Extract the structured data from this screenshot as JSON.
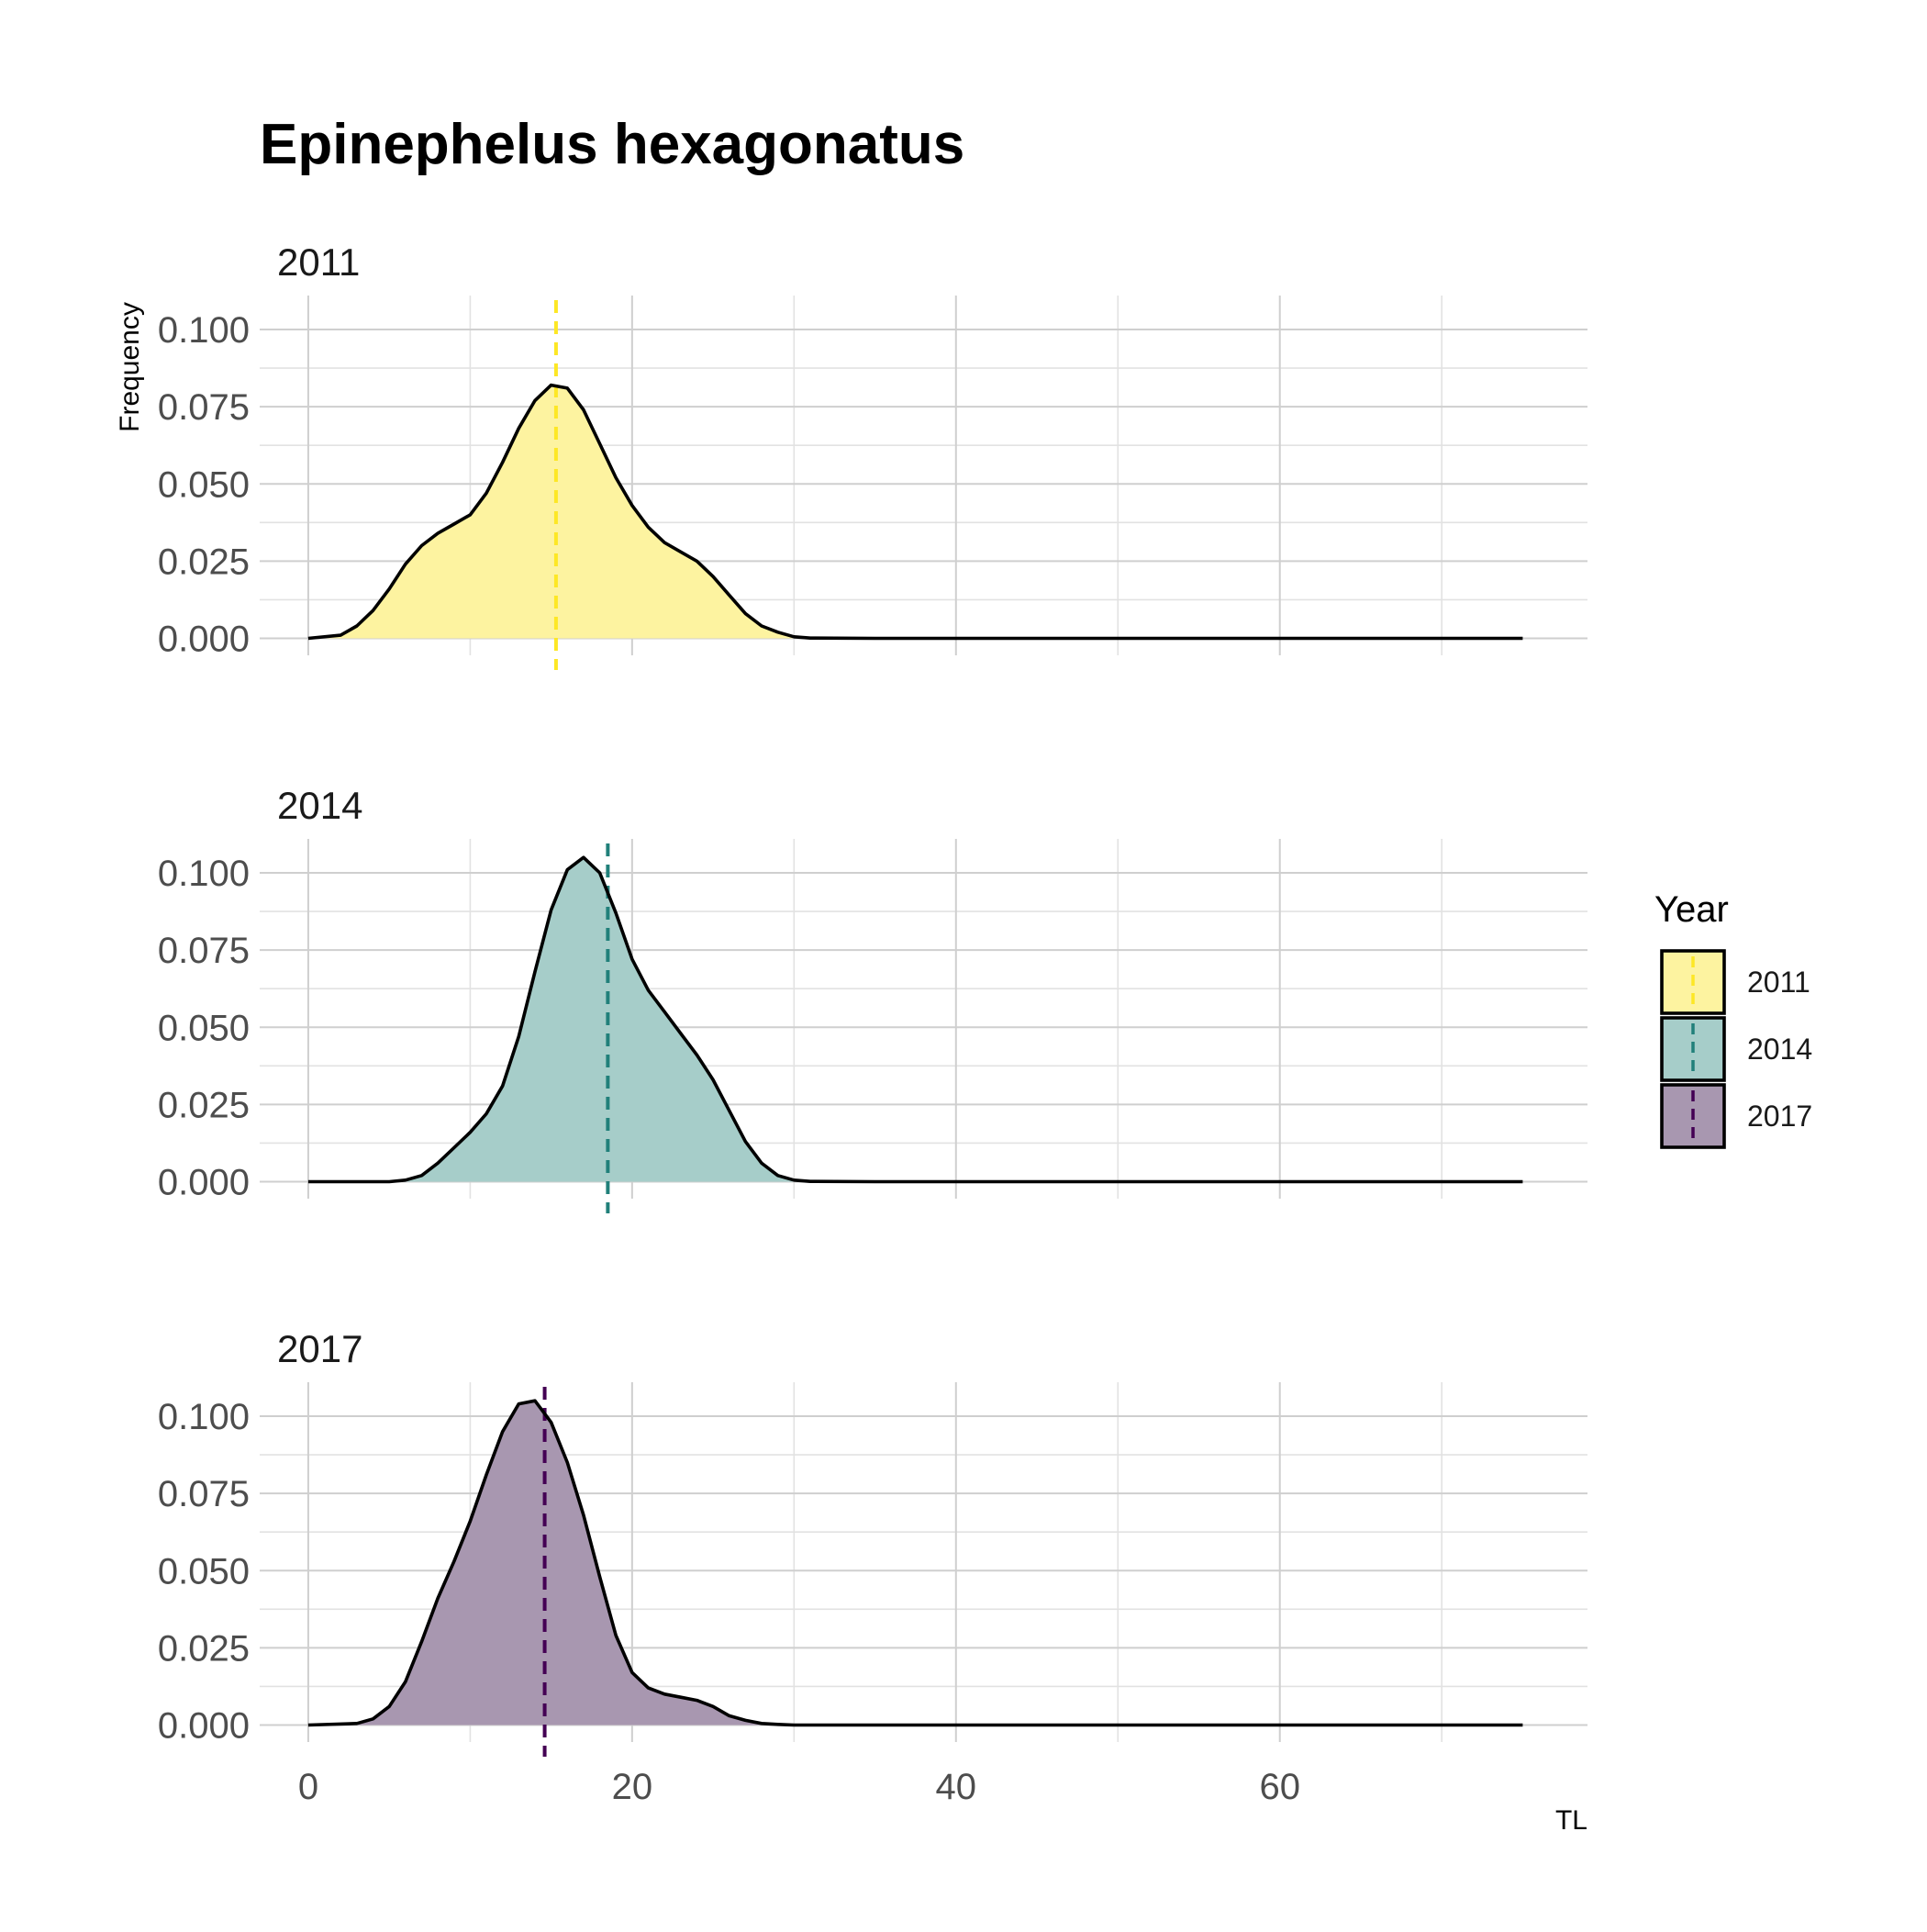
{
  "chart_data": {
    "type": "area",
    "title": "Epinephelus hexagonatus",
    "xlabel": "TL",
    "ylabel": "Frequency",
    "xlim": [
      -3,
      79
    ],
    "ylim": [
      -0.0055,
      0.111
    ],
    "x_ticks": [
      0,
      20,
      40,
      60
    ],
    "x_tick_labels": [
      "0",
      "20",
      "40",
      "60"
    ],
    "y_ticks": [
      0,
      0.025,
      0.05,
      0.075,
      0.1
    ],
    "y_tick_labels": [
      "0.000",
      "0.025",
      "0.050",
      "0.075",
      "0.100"
    ],
    "grid": true,
    "legend": {
      "title": "Year",
      "position": "right",
      "entries": [
        "2011",
        "2014",
        "2017"
      ]
    },
    "series": [
      {
        "name": "2011",
        "color": "#FDE725",
        "fill": "#FDF3A0",
        "mean_line": 15.3,
        "x": [
          0,
          2,
          3,
          4,
          5,
          6,
          7,
          8,
          9,
          10,
          11,
          12,
          13,
          14,
          15,
          16,
          17,
          18,
          19,
          20,
          21,
          22,
          23,
          24,
          25,
          26,
          27,
          28,
          29,
          30,
          31,
          35,
          40,
          50,
          60,
          70,
          75
        ],
        "y": [
          0.0,
          0.001,
          0.004,
          0.009,
          0.016,
          0.024,
          0.03,
          0.034,
          0.037,
          0.04,
          0.047,
          0.057,
          0.068,
          0.077,
          0.082,
          0.081,
          0.074,
          0.063,
          0.052,
          0.043,
          0.036,
          0.031,
          0.028,
          0.025,
          0.02,
          0.014,
          0.008,
          0.004,
          0.002,
          0.0005,
          0.0001,
          0.0,
          0.0,
          0.0,
          0.0,
          0.0,
          0.0
        ]
      },
      {
        "name": "2014",
        "color": "#21807A",
        "fill": "#A6CDC9",
        "mean_line": 18.5,
        "x": [
          0,
          5,
          6,
          7,
          8,
          9,
          10,
          11,
          12,
          13,
          14,
          15,
          16,
          17,
          18,
          19,
          20,
          21,
          22,
          23,
          24,
          25,
          26,
          27,
          28,
          29,
          30,
          31,
          35,
          40,
          50,
          60,
          70,
          75
        ],
        "y": [
          0.0,
          0.0,
          0.0005,
          0.002,
          0.006,
          0.011,
          0.016,
          0.022,
          0.031,
          0.047,
          0.068,
          0.088,
          0.101,
          0.105,
          0.1,
          0.087,
          0.072,
          0.062,
          0.055,
          0.048,
          0.041,
          0.033,
          0.023,
          0.013,
          0.006,
          0.002,
          0.0005,
          0.0001,
          0.0,
          0.0,
          0.0,
          0.0,
          0.0,
          0.0
        ]
      },
      {
        "name": "2017",
        "color": "#440154",
        "fill": "#A897B0",
        "mean_line": 14.6,
        "x": [
          0,
          3,
          4,
          5,
          6,
          7,
          8,
          9,
          10,
          11,
          12,
          13,
          14,
          15,
          16,
          17,
          18,
          19,
          20,
          21,
          22,
          23,
          24,
          25,
          26,
          27,
          28,
          29,
          30,
          35,
          40,
          50,
          60,
          70,
          75
        ],
        "y": [
          0.0,
          0.0005,
          0.002,
          0.006,
          0.014,
          0.027,
          0.041,
          0.053,
          0.066,
          0.081,
          0.095,
          0.104,
          0.105,
          0.098,
          0.085,
          0.068,
          0.048,
          0.029,
          0.017,
          0.012,
          0.01,
          0.009,
          0.008,
          0.006,
          0.003,
          0.0015,
          0.0005,
          0.0002,
          0.0,
          0.0,
          0.0,
          0.0,
          0.0,
          0.0,
          0.0
        ]
      }
    ]
  }
}
